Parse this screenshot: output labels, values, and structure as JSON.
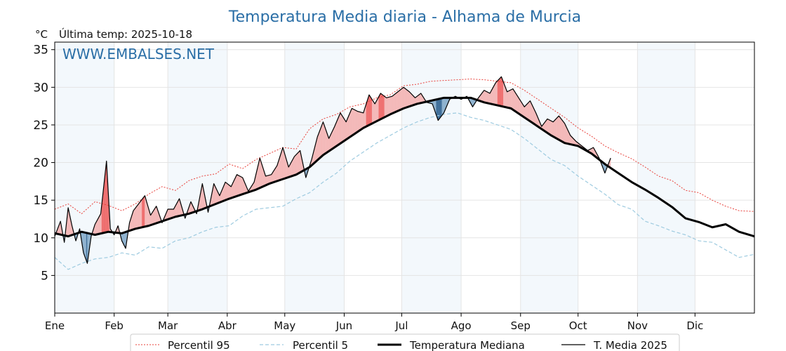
{
  "chart_data": {
    "type": "line",
    "title": "Temperatura Media diaria - Alhama de Murcia",
    "unit": "°C",
    "last_temp": "Última temp: 2025-10-18",
    "watermark": "WWW.EMBALSES.NET",
    "ylim": [
      0,
      36
    ],
    "yticks": [
      5,
      10,
      15,
      20,
      25,
      30,
      35
    ],
    "xlim": [
      1,
      366
    ],
    "months": [
      "Ene",
      "Feb",
      "Mar",
      "Abr",
      "May",
      "Jun",
      "Jul",
      "Ago",
      "Sep",
      "Oct",
      "Nov",
      "Dic"
    ],
    "month_start_days": [
      1,
      32,
      60,
      91,
      121,
      152,
      182,
      213,
      244,
      274,
      305,
      335
    ],
    "grid": true,
    "legend_position": "bottom",
    "series": [
      {
        "name": "Percentil 95",
        "color": "#e8403a",
        "style": "dotted",
        "x": [
          1,
          8,
          15,
          22,
          29,
          36,
          43,
          50,
          57,
          64,
          71,
          78,
          85,
          92,
          99,
          106,
          113,
          120,
          127,
          134,
          141,
          148,
          155,
          162,
          169,
          176,
          183,
          190,
          197,
          204,
          211,
          218,
          225,
          232,
          239,
          246,
          253,
          260,
          267,
          274,
          281,
          288,
          295,
          302,
          309,
          316,
          323,
          330,
          337,
          344,
          351,
          358,
          366
        ],
        "y": [
          13.8,
          14.5,
          13.2,
          14.8,
          14.3,
          13.6,
          14.5,
          15.8,
          16.8,
          16.3,
          17.6,
          18.2,
          18.5,
          19.8,
          19.2,
          20.4,
          21.2,
          22.0,
          21.8,
          24.5,
          25.8,
          26.4,
          27.4,
          27.8,
          28.6,
          29.0,
          30.2,
          30.4,
          30.8,
          30.9,
          31.0,
          31.1,
          31.0,
          30.8,
          30.6,
          29.6,
          28.4,
          27.2,
          26.0,
          24.6,
          23.5,
          22.2,
          21.3,
          20.5,
          19.4,
          18.2,
          17.6,
          16.3,
          16.0,
          15.0,
          14.2,
          13.6,
          13.5
        ]
      },
      {
        "name": "Percentil 5",
        "color": "#9ecbe0",
        "style": "dashed",
        "x": [
          1,
          8,
          15,
          22,
          29,
          36,
          43,
          50,
          57,
          64,
          71,
          78,
          85,
          92,
          99,
          106,
          113,
          120,
          127,
          134,
          141,
          148,
          155,
          162,
          169,
          176,
          183,
          190,
          197,
          204,
          211,
          218,
          225,
          232,
          239,
          246,
          253,
          260,
          267,
          274,
          281,
          288,
          295,
          302,
          309,
          316,
          323,
          330,
          337,
          344,
          351,
          358,
          366
        ],
        "y": [
          7.4,
          5.8,
          6.6,
          7.2,
          7.4,
          8.0,
          7.7,
          8.8,
          8.6,
          9.6,
          10.0,
          10.8,
          11.4,
          11.6,
          12.9,
          13.8,
          14.0,
          14.2,
          15.2,
          16.0,
          17.4,
          18.6,
          20.2,
          21.4,
          22.6,
          23.6,
          24.6,
          25.4,
          26.0,
          26.4,
          26.6,
          26.0,
          25.6,
          25.0,
          24.4,
          23.2,
          21.8,
          20.4,
          19.6,
          18.2,
          17.0,
          15.8,
          14.4,
          13.8,
          12.2,
          11.6,
          10.9,
          10.4,
          9.6,
          9.4,
          8.4,
          7.4,
          7.8
        ]
      },
      {
        "name": "Temperatura Mediana",
        "color": "#000000",
        "style": "solid-thick",
        "x": [
          1,
          8,
          15,
          22,
          29,
          36,
          43,
          50,
          57,
          64,
          71,
          78,
          85,
          92,
          99,
          106,
          113,
          120,
          127,
          134,
          141,
          148,
          155,
          162,
          169,
          176,
          183,
          190,
          197,
          204,
          211,
          218,
          225,
          232,
          239,
          246,
          253,
          260,
          267,
          274,
          281,
          288,
          295,
          302,
          309,
          316,
          323,
          330,
          337,
          344,
          351,
          358,
          366
        ],
        "y": [
          10.6,
          10.2,
          10.8,
          10.4,
          10.8,
          10.6,
          11.2,
          11.6,
          12.2,
          12.8,
          13.2,
          13.8,
          14.5,
          15.2,
          15.8,
          16.4,
          17.2,
          17.8,
          18.4,
          19.4,
          21.0,
          22.2,
          23.4,
          24.6,
          25.5,
          26.4,
          27.2,
          27.8,
          28.2,
          28.6,
          28.6,
          28.6,
          28.0,
          27.6,
          27.2,
          26.0,
          24.8,
          23.6,
          22.6,
          22.2,
          21.2,
          19.8,
          18.6,
          17.4,
          16.4,
          15.3,
          14.1,
          12.6,
          12.1,
          11.4,
          11.8,
          10.8,
          10.2
        ]
      },
      {
        "name": "T. Media 2025",
        "color": "#000000",
        "style": "solid",
        "x": [
          1,
          4,
          6,
          8,
          10,
          12,
          14,
          16,
          18,
          20,
          22,
          25,
          28,
          30,
          32,
          34,
          36,
          38,
          40,
          42,
          45,
          48,
          51,
          54,
          57,
          60,
          63,
          66,
          69,
          72,
          75,
          78,
          81,
          84,
          87,
          90,
          93,
          96,
          99,
          102,
          105,
          108,
          111,
          114,
          117,
          120,
          123,
          126,
          129,
          132,
          135,
          138,
          141,
          144,
          147,
          150,
          153,
          156,
          159,
          162,
          165,
          168,
          171,
          174,
          177,
          180,
          183,
          186,
          189,
          192,
          195,
          198,
          201,
          204,
          207,
          210,
          213,
          216,
          219,
          222,
          225,
          228,
          231,
          234,
          237,
          240,
          243,
          246,
          249,
          252,
          255,
          258,
          261,
          264,
          267,
          270,
          273,
          276,
          279,
          282,
          285,
          288,
          291
        ],
        "y": [
          10.2,
          12.2,
          9.4,
          14.0,
          11.6,
          9.6,
          11.2,
          8.0,
          6.6,
          10.2,
          11.8,
          13.2,
          20.2,
          11.2,
          10.4,
          11.6,
          9.6,
          8.6,
          12.0,
          13.6,
          14.6,
          15.6,
          13.0,
          14.2,
          12.0,
          13.8,
          13.8,
          15.2,
          12.6,
          14.8,
          13.2,
          17.2,
          13.4,
          17.2,
          15.6,
          17.4,
          16.8,
          18.4,
          18.0,
          16.2,
          17.4,
          20.6,
          18.2,
          18.4,
          19.6,
          22.0,
          19.4,
          20.8,
          21.6,
          18.0,
          20.4,
          23.4,
          25.4,
          23.2,
          24.8,
          26.6,
          25.4,
          27.2,
          26.8,
          26.6,
          29.0,
          27.8,
          29.2,
          28.6,
          28.8,
          29.4,
          30.0,
          29.4,
          28.6,
          29.2,
          28.0,
          27.8,
          25.6,
          26.6,
          28.4,
          28.8,
          28.4,
          28.8,
          27.4,
          28.6,
          29.6,
          29.2,
          30.6,
          31.4,
          29.4,
          29.8,
          28.6,
          27.4,
          28.2,
          26.6,
          24.8,
          25.8,
          25.4,
          26.2,
          25.2,
          23.6,
          22.8,
          22.2,
          21.6,
          22.0,
          20.6,
          18.6,
          20.6
        ]
      }
    ]
  }
}
